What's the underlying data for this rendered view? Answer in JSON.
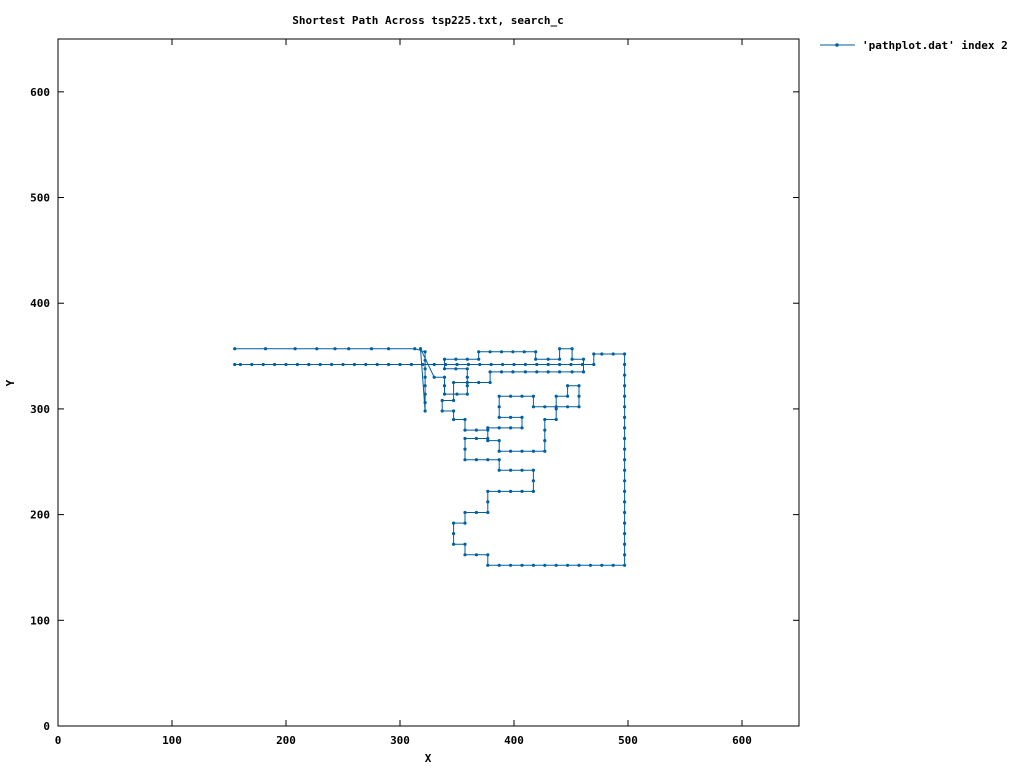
{
  "chart_data": {
    "type": "line",
    "title": "Shortest Path Across tsp225.txt, search_c",
    "xlabel": "X",
    "ylabel": "Y",
    "xlim": [
      0,
      650
    ],
    "ylim": [
      0,
      650
    ],
    "x_ticks": [
      0,
      100,
      200,
      300,
      400,
      500,
      600
    ],
    "y_ticks": [
      0,
      100,
      200,
      300,
      400,
      500,
      600
    ],
    "x_tick_labels": [
      "0",
      "100",
      "200",
      "300",
      "400",
      "500",
      "600"
    ],
    "y_tick_labels": [
      "0",
      "100",
      "200",
      "300",
      "400",
      "500",
      "600"
    ],
    "grid": false,
    "legend_position": "top-right",
    "colors": {
      "series": "#005f9e",
      "axes": "#000000",
      "background": "#ffffff"
    },
    "series": [
      {
        "name": "'pathplot.dat' index 2",
        "points": [
          [
            155,
            357
          ],
          [
            182,
            357
          ],
          [
            208,
            357
          ],
          [
            227,
            357
          ],
          [
            243,
            357
          ],
          [
            255,
            357
          ],
          [
            275,
            357
          ],
          [
            290,
            357
          ],
          [
            313,
            357
          ],
          [
            322,
            354
          ],
          [
            322,
            346
          ],
          [
            322,
            338
          ],
          [
            322,
            330
          ],
          [
            322,
            322
          ],
          [
            322,
            314
          ],
          [
            322,
            306
          ],
          [
            322,
            298
          ],
          [
            318,
            357
          ],
          [
            330,
            330
          ],
          [
            339,
            330
          ],
          [
            339,
            322
          ],
          [
            339,
            314
          ],
          [
            350,
            314
          ],
          [
            359,
            314
          ],
          [
            359,
            322
          ],
          [
            359,
            330
          ],
          [
            359,
            338
          ],
          [
            349,
            338
          ],
          [
            339,
            338
          ],
          [
            339,
            347
          ],
          [
            349,
            347
          ],
          [
            359,
            347
          ],
          [
            369,
            347
          ],
          [
            369,
            354
          ],
          [
            379,
            354
          ],
          [
            389,
            354
          ],
          [
            399,
            354
          ],
          [
            409,
            354
          ],
          [
            419,
            354
          ],
          [
            419,
            347
          ],
          [
            430,
            347
          ],
          [
            440,
            347
          ],
          [
            440,
            357
          ],
          [
            451,
            357
          ],
          [
            451,
            347
          ],
          [
            461,
            347
          ],
          [
            461,
            335
          ],
          [
            451,
            335
          ],
          [
            440,
            335
          ],
          [
            430,
            335
          ],
          [
            420,
            335
          ],
          [
            410,
            335
          ],
          [
            399,
            335
          ],
          [
            389,
            335
          ],
          [
            379,
            335
          ],
          [
            379,
            325
          ],
          [
            369,
            325
          ],
          [
            359,
            325
          ],
          [
            347,
            325
          ],
          [
            347,
            308
          ],
          [
            337,
            308
          ],
          [
            337,
            298
          ],
          [
            347,
            298
          ],
          [
            347,
            290
          ],
          [
            357,
            290
          ],
          [
            357,
            280
          ],
          [
            367,
            280
          ],
          [
            377,
            280
          ],
          [
            377,
            270
          ],
          [
            387,
            270
          ],
          [
            387,
            260
          ],
          [
            397,
            260
          ],
          [
            407,
            260
          ],
          [
            417,
            260
          ],
          [
            427,
            260
          ],
          [
            427,
            270
          ],
          [
            427,
            280
          ],
          [
            427,
            290
          ],
          [
            437,
            290
          ],
          [
            437,
            300
          ],
          [
            437,
            312
          ],
          [
            447,
            312
          ],
          [
            447,
            322
          ],
          [
            457,
            322
          ],
          [
            457,
            312
          ],
          [
            457,
            302
          ],
          [
            447,
            302
          ],
          [
            437,
            302
          ],
          [
            427,
            302
          ],
          [
            417,
            302
          ],
          [
            417,
            312
          ],
          [
            407,
            312
          ],
          [
            397,
            312
          ],
          [
            387,
            312
          ],
          [
            387,
            302
          ],
          [
            387,
            292
          ],
          [
            397,
            292
          ],
          [
            407,
            292
          ],
          [
            407,
            282
          ],
          [
            397,
            282
          ],
          [
            387,
            282
          ],
          [
            377,
            282
          ],
          [
            377,
            272
          ],
          [
            367,
            272
          ],
          [
            357,
            272
          ],
          [
            357,
            262
          ],
          [
            357,
            252
          ],
          [
            367,
            252
          ],
          [
            377,
            252
          ],
          [
            387,
            252
          ],
          [
            387,
            242
          ],
          [
            397,
            242
          ],
          [
            407,
            242
          ],
          [
            417,
            242
          ],
          [
            417,
            232
          ],
          [
            417,
            222
          ],
          [
            407,
            222
          ],
          [
            397,
            222
          ],
          [
            387,
            222
          ],
          [
            377,
            222
          ],
          [
            377,
            212
          ],
          [
            377,
            202
          ],
          [
            367,
            202
          ],
          [
            357,
            202
          ],
          [
            357,
            192
          ],
          [
            347,
            192
          ],
          [
            347,
            182
          ],
          [
            347,
            172
          ],
          [
            357,
            172
          ],
          [
            357,
            162
          ],
          [
            367,
            162
          ],
          [
            377,
            162
          ],
          [
            377,
            152
          ],
          [
            387,
            152
          ],
          [
            397,
            152
          ],
          [
            407,
            152
          ],
          [
            417,
            152
          ],
          [
            427,
            152
          ],
          [
            437,
            152
          ],
          [
            447,
            152
          ],
          [
            457,
            152
          ],
          [
            467,
            152
          ],
          [
            477,
            152
          ],
          [
            487,
            152
          ],
          [
            497,
            152
          ],
          [
            497,
            162
          ],
          [
            497,
            172
          ],
          [
            497,
            182
          ],
          [
            497,
            192
          ],
          [
            497,
            202
          ],
          [
            497,
            212
          ],
          [
            497,
            222
          ],
          [
            497,
            232
          ],
          [
            497,
            242
          ],
          [
            497,
            252
          ],
          [
            497,
            262
          ],
          [
            497,
            272
          ],
          [
            497,
            282
          ],
          [
            497,
            292
          ],
          [
            497,
            302
          ],
          [
            497,
            312
          ],
          [
            497,
            322
          ],
          [
            497,
            332
          ],
          [
            497,
            342
          ],
          [
            497,
            352
          ],
          [
            487,
            352
          ],
          [
            477,
            352
          ],
          [
            470,
            352
          ],
          [
            470,
            342
          ],
          [
            460,
            342
          ],
          [
            450,
            342
          ],
          [
            440,
            342
          ],
          [
            430,
            342
          ],
          [
            420,
            342
          ],
          [
            410,
            342
          ],
          [
            400,
            342
          ],
          [
            390,
            342
          ],
          [
            380,
            342
          ],
          [
            370,
            342
          ],
          [
            360,
            342
          ],
          [
            350,
            342
          ],
          [
            340,
            342
          ],
          [
            330,
            342
          ],
          [
            320,
            342
          ],
          [
            310,
            342
          ],
          [
            300,
            342
          ],
          [
            290,
            342
          ],
          [
            280,
            342
          ],
          [
            270,
            342
          ],
          [
            260,
            342
          ],
          [
            250,
            342
          ],
          [
            240,
            342
          ],
          [
            230,
            342
          ],
          [
            220,
            342
          ],
          [
            210,
            342
          ],
          [
            200,
            342
          ],
          [
            190,
            342
          ],
          [
            180,
            342
          ],
          [
            170,
            342
          ],
          [
            160,
            342
          ],
          [
            155,
            342
          ]
        ]
      }
    ]
  }
}
